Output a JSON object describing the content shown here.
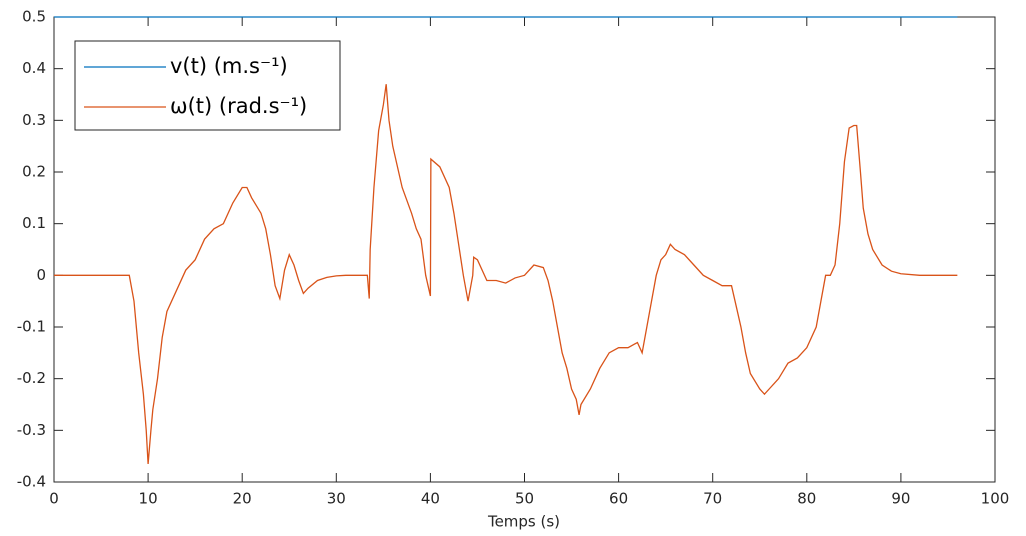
{
  "chart_data": {
    "type": "line",
    "xlabel": "Temps (s)",
    "xlim": [
      0,
      100
    ],
    "xticks": [
      0,
      10,
      20,
      30,
      40,
      50,
      60,
      70,
      80,
      90,
      100
    ],
    "ylim": [
      -0.4,
      0.5
    ],
    "yticks": [
      -0.4,
      -0.3,
      -0.2,
      -0.1,
      0,
      0.1,
      0.2,
      0.3,
      0.4,
      0.5
    ],
    "legend": "upper left",
    "series": [
      {
        "name": "v(t) (m.s⁻¹)",
        "color": "#0072BD",
        "x": [
          0,
          96
        ],
        "values": [
          0.5,
          0.5
        ]
      },
      {
        "name": "ω(t) (rad.s⁻¹)",
        "color": "#D95319",
        "x": [
          0,
          8,
          8.5,
          9,
          9.5,
          9.8,
          10,
          10.3,
          10.5,
          11,
          11.5,
          12,
          13,
          14,
          15,
          16,
          17,
          18,
          19,
          20,
          20.5,
          21,
          22,
          22.5,
          23,
          23.5,
          24,
          24.5,
          25,
          25.5,
          26,
          26.5,
          27,
          28,
          29,
          30,
          31,
          33.3,
          33.5,
          33.6,
          34,
          34.5,
          35,
          35.3,
          35.6,
          36,
          37,
          38,
          38.5,
          39,
          39.5,
          40,
          40.05,
          41,
          42,
          42.5,
          43,
          43.5,
          44,
          44.5,
          44.6,
          45,
          46,
          47,
          48,
          49,
          50,
          51,
          52,
          52.5,
          53,
          53.5,
          54,
          54.5,
          55,
          55.5,
          55.8,
          56,
          57,
          58,
          59,
          60,
          61,
          62,
          62.5,
          63,
          63.5,
          64,
          64.5,
          65,
          65.5,
          66,
          67,
          68,
          69,
          70,
          71,
          72,
          72.5,
          73,
          73.5,
          74,
          75,
          75.5,
          76,
          77,
          78,
          79,
          80,
          81,
          81.5,
          82,
          82.5,
          83,
          83.5,
          84,
          84.5,
          85,
          85.3,
          85.7,
          86,
          86.5,
          87,
          88,
          89,
          90,
          92,
          96
        ],
        "values": [
          0,
          0,
          -0.05,
          -0.15,
          -0.23,
          -0.3,
          -0.365,
          -0.3,
          -0.26,
          -0.2,
          -0.12,
          -0.07,
          -0.03,
          0.01,
          0.03,
          0.07,
          0.09,
          0.1,
          0.14,
          0.17,
          0.17,
          0.15,
          0.12,
          0.09,
          0.04,
          -0.02,
          -0.045,
          0.01,
          0.04,
          0.02,
          -0.01,
          -0.035,
          -0.025,
          -0.01,
          -0.004,
          -0.001,
          0,
          0,
          -0.045,
          0.05,
          0.17,
          0.28,
          0.33,
          0.37,
          0.3,
          0.25,
          0.17,
          0.12,
          0.09,
          0.07,
          0.0,
          -0.04,
          0.225,
          0.21,
          0.17,
          0.12,
          0.06,
          0.0,
          -0.05,
          0.0,
          0.035,
          0.03,
          -0.01,
          -0.01,
          -0.015,
          -0.005,
          0.0,
          0.02,
          0.015,
          -0.01,
          -0.05,
          -0.1,
          -0.15,
          -0.18,
          -0.22,
          -0.24,
          -0.27,
          -0.25,
          -0.22,
          -0.18,
          -0.15,
          -0.14,
          -0.14,
          -0.13,
          -0.15,
          -0.1,
          -0.05,
          0.0,
          0.03,
          0.04,
          0.06,
          0.05,
          0.04,
          0.02,
          0.0,
          -0.01,
          -0.02,
          -0.02,
          -0.06,
          -0.1,
          -0.15,
          -0.19,
          -0.22,
          -0.23,
          -0.22,
          -0.2,
          -0.17,
          -0.16,
          -0.14,
          -0.1,
          -0.05,
          0.0,
          0.0,
          0.02,
          0.1,
          0.22,
          0.285,
          0.29,
          0.29,
          0.2,
          0.13,
          0.08,
          0.05,
          0.02,
          0.008,
          0.003,
          0,
          0
        ]
      }
    ]
  }
}
